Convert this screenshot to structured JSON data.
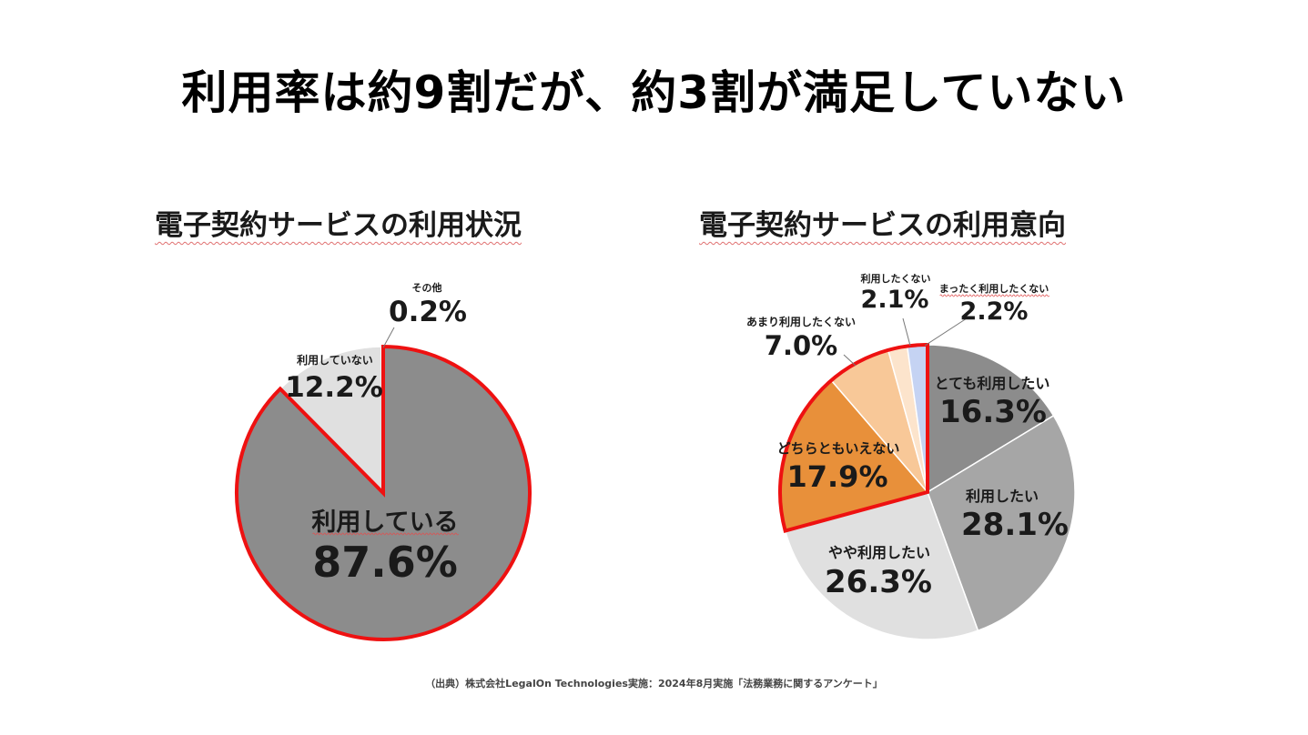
{
  "title": "利用率は約9割だが、約3割が満足していない",
  "source": "（出典）株式会社LegalOn Technologies実施：2024年8月実施「法務業務に関するアンケート」",
  "chart_data": [
    {
      "type": "pie",
      "title": "電子契約サービスの利用状況",
      "slices": [
        {
          "label": "利用している",
          "value": 87.6,
          "display": "87.6%",
          "color": "#8c8c8c",
          "highlight": true
        },
        {
          "label": "利用していない",
          "value": 12.2,
          "display": "12.2%",
          "color": "#e0e0e0",
          "highlight": false
        },
        {
          "label": "その他",
          "value": 0.2,
          "display": "0.2%",
          "color": "#6f86c8",
          "highlight": false
        }
      ],
      "legend": "none"
    },
    {
      "type": "pie",
      "title": "電子契約サービスの利用意向",
      "slices": [
        {
          "label": "とても利用したい",
          "value": 16.3,
          "display": "16.3%",
          "color": "#8c8c8c",
          "highlight": false
        },
        {
          "label": "利用したい",
          "value": 28.1,
          "display": "28.1%",
          "color": "#a6a6a6",
          "highlight": false
        },
        {
          "label": "やや利用したい",
          "value": 26.3,
          "display": "26.3%",
          "color": "#e0e0e0",
          "highlight": false
        },
        {
          "label": "どちらともいえない",
          "value": 17.9,
          "display": "17.9%",
          "color": "#e8903a",
          "highlight": true
        },
        {
          "label": "あまり利用したくない",
          "value": 7.0,
          "display": "7.0%",
          "color": "#f8c898",
          "highlight": true
        },
        {
          "label": "利用したくない",
          "value": 2.1,
          "display": "2.1%",
          "color": "#fce4cc",
          "highlight": true
        },
        {
          "label": "まったく利用したくない",
          "value": 2.2,
          "display": "2.2%",
          "color": "#c5d3f3",
          "highlight": true
        }
      ],
      "legend": "none"
    }
  ]
}
